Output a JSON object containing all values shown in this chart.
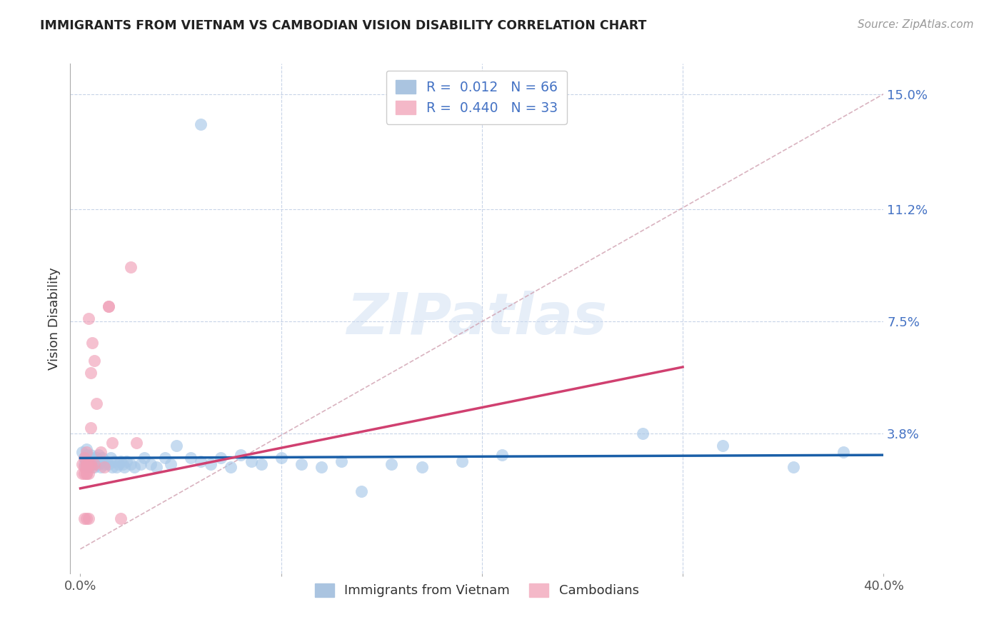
{
  "title": "IMMIGRANTS FROM VIETNAM VS CAMBODIAN VISION DISABILITY CORRELATION CHART",
  "source": "Source: ZipAtlas.com",
  "ylabel": "Vision Disability",
  "xlim": [
    0.0,
    0.4
  ],
  "ylim": [
    0.0,
    0.16
  ],
  "ytick_positions": [
    0.038,
    0.075,
    0.112,
    0.15
  ],
  "ytick_labels": [
    "3.8%",
    "7.5%",
    "11.2%",
    "15.0%"
  ],
  "watermark": "ZIPatlas",
  "blue_color": "#a8c8e8",
  "pink_color": "#f0a0b8",
  "blue_line_color": "#1a5fa8",
  "pink_line_color": "#d04070",
  "diagonal_line_color": "#d0a0b0",
  "blue_scatter": [
    [
      0.001,
      0.032
    ],
    [
      0.002,
      0.03
    ],
    [
      0.002,
      0.028
    ],
    [
      0.003,
      0.033
    ],
    [
      0.003,
      0.029
    ],
    [
      0.003,
      0.031
    ],
    [
      0.004,
      0.03
    ],
    [
      0.004,
      0.028
    ],
    [
      0.004,
      0.027
    ],
    [
      0.005,
      0.031
    ],
    [
      0.005,
      0.029
    ],
    [
      0.005,
      0.028
    ],
    [
      0.006,
      0.03
    ],
    [
      0.006,
      0.028
    ],
    [
      0.007,
      0.029
    ],
    [
      0.007,
      0.027
    ],
    [
      0.008,
      0.03
    ],
    [
      0.008,
      0.028
    ],
    [
      0.009,
      0.031
    ],
    [
      0.009,
      0.028
    ],
    [
      0.01,
      0.029
    ],
    [
      0.01,
      0.027
    ],
    [
      0.011,
      0.03
    ],
    [
      0.012,
      0.028
    ],
    [
      0.013,
      0.029
    ],
    [
      0.014,
      0.028
    ],
    [
      0.015,
      0.03
    ],
    [
      0.016,
      0.027
    ],
    [
      0.017,
      0.029
    ],
    [
      0.018,
      0.027
    ],
    [
      0.019,
      0.028
    ],
    [
      0.02,
      0.029
    ],
    [
      0.021,
      0.028
    ],
    [
      0.022,
      0.027
    ],
    [
      0.023,
      0.029
    ],
    [
      0.025,
      0.028
    ],
    [
      0.027,
      0.027
    ],
    [
      0.03,
      0.028
    ],
    [
      0.032,
      0.03
    ],
    [
      0.035,
      0.028
    ],
    [
      0.038,
      0.027
    ],
    [
      0.042,
      0.03
    ],
    [
      0.045,
      0.028
    ],
    [
      0.048,
      0.034
    ],
    [
      0.055,
      0.03
    ],
    [
      0.06,
      0.029
    ],
    [
      0.065,
      0.028
    ],
    [
      0.07,
      0.03
    ],
    [
      0.075,
      0.027
    ],
    [
      0.08,
      0.031
    ],
    [
      0.085,
      0.029
    ],
    [
      0.09,
      0.028
    ],
    [
      0.1,
      0.03
    ],
    [
      0.11,
      0.028
    ],
    [
      0.12,
      0.027
    ],
    [
      0.13,
      0.029
    ],
    [
      0.14,
      0.019
    ],
    [
      0.155,
      0.028
    ],
    [
      0.17,
      0.027
    ],
    [
      0.19,
      0.029
    ],
    [
      0.21,
      0.031
    ],
    [
      0.28,
      0.038
    ],
    [
      0.32,
      0.034
    ],
    [
      0.355,
      0.027
    ],
    [
      0.06,
      0.14
    ],
    [
      0.38,
      0.032
    ]
  ],
  "pink_scatter": [
    [
      0.001,
      0.025
    ],
    [
      0.001,
      0.028
    ],
    [
      0.002,
      0.03
    ],
    [
      0.002,
      0.027
    ],
    [
      0.002,
      0.01
    ],
    [
      0.002,
      0.025
    ],
    [
      0.003,
      0.032
    ],
    [
      0.003,
      0.025
    ],
    [
      0.003,
      0.028
    ],
    [
      0.003,
      0.01
    ],
    [
      0.003,
      0.027
    ],
    [
      0.004,
      0.076
    ],
    [
      0.004,
      0.028
    ],
    [
      0.004,
      0.025
    ],
    [
      0.004,
      0.01
    ],
    [
      0.005,
      0.058
    ],
    [
      0.005,
      0.04
    ],
    [
      0.005,
      0.028
    ],
    [
      0.006,
      0.068
    ],
    [
      0.006,
      0.027
    ],
    [
      0.007,
      0.062
    ],
    [
      0.007,
      0.028
    ],
    [
      0.008,
      0.048
    ],
    [
      0.01,
      0.032
    ],
    [
      0.012,
      0.027
    ],
    [
      0.014,
      0.08
    ],
    [
      0.016,
      0.035
    ],
    [
      0.02,
      0.01
    ],
    [
      0.025,
      0.093
    ],
    [
      0.028,
      0.035
    ],
    [
      0.014,
      0.08
    ],
    [
      0.003,
      0.025
    ],
    [
      0.003,
      0.027
    ]
  ],
  "blue_line_x": [
    0.0,
    0.4
  ],
  "blue_line_y": [
    0.03,
    0.031
  ],
  "pink_line_x": [
    0.0,
    0.3
  ],
  "pink_line_y": [
    0.02,
    0.06
  ],
  "diag_line_x": [
    0.0,
    0.4
  ],
  "diag_line_y": [
    0.0,
    0.15
  ]
}
